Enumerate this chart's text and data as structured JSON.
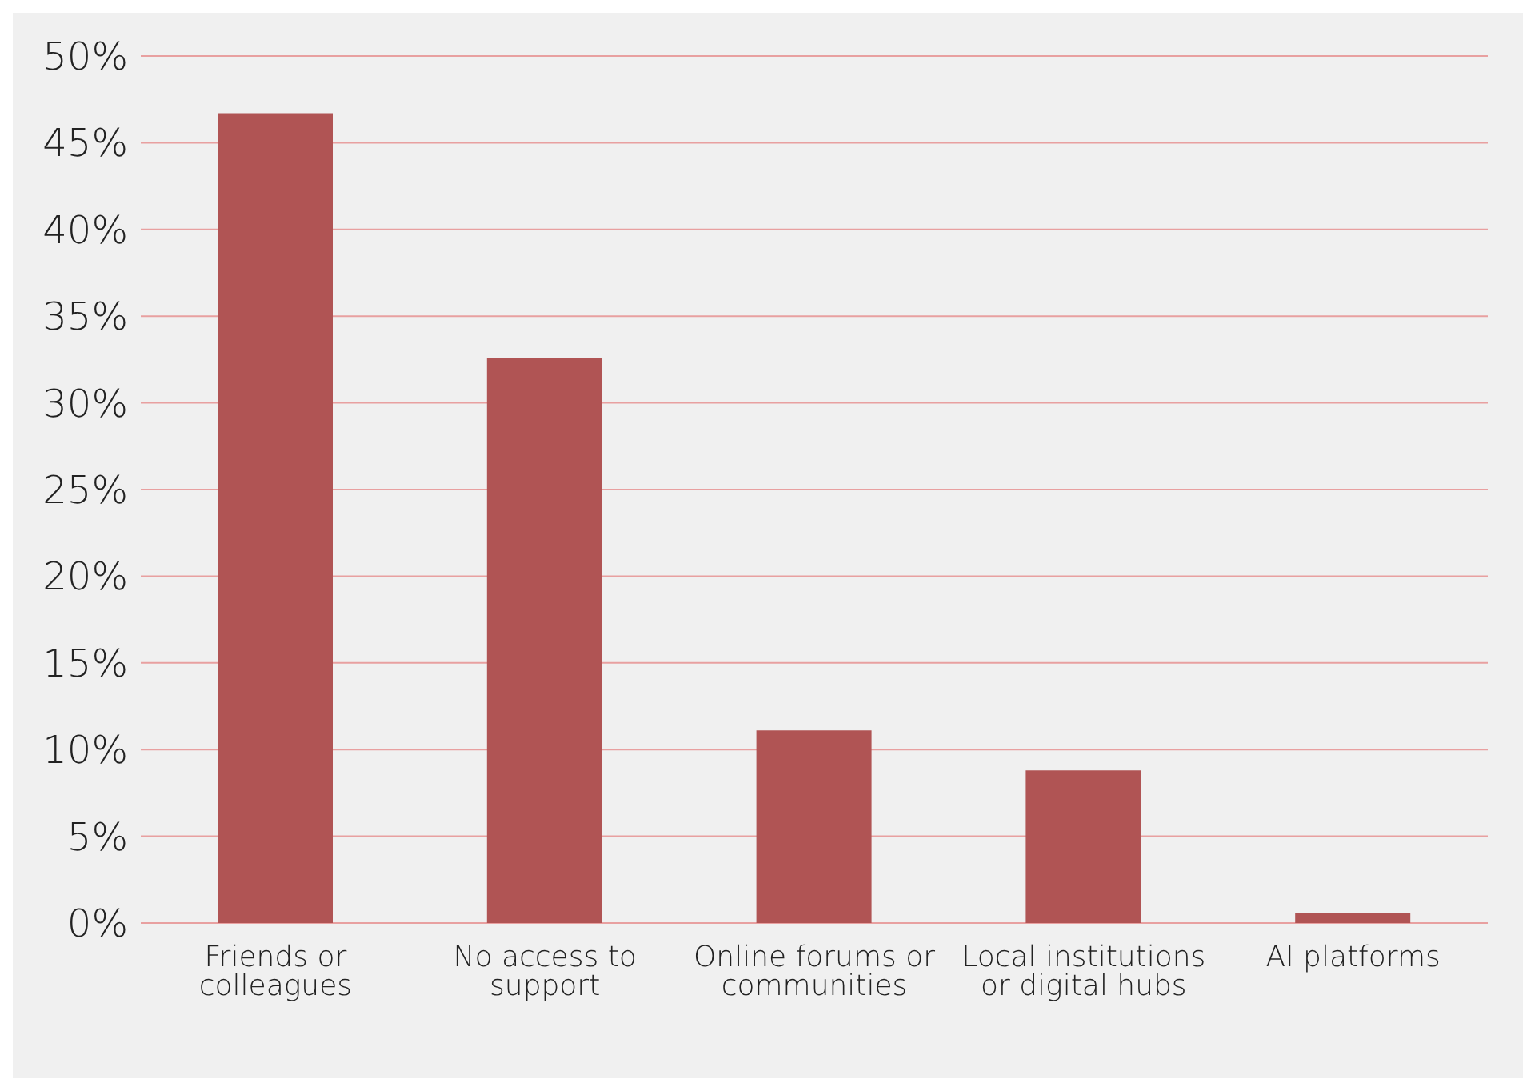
{
  "chart_data": {
    "type": "bar",
    "categories": [
      "Friends or colleagues",
      "No access to support",
      "Online forums or communities",
      "Local institutions or digital hubs",
      "AI platforms"
    ],
    "values": [
      46.7,
      32.6,
      11.1,
      8.8,
      0.6
    ],
    "color": "#b05454",
    "ylim": [
      0,
      50
    ],
    "yticks": [
      {
        "value": 0,
        "label": "0%"
      },
      {
        "value": 5,
        "label": "5%"
      },
      {
        "value": 10,
        "label": "10%"
      },
      {
        "value": 15,
        "label": "15%"
      },
      {
        "value": 20,
        "label": "20%"
      },
      {
        "value": 25,
        "label": "25%"
      },
      {
        "value": 30,
        "label": "30%"
      },
      {
        "value": 35,
        "label": "35%"
      },
      {
        "value": 40,
        "label": "40%"
      },
      {
        "value": 45,
        "label": "45%"
      },
      {
        "value": 50,
        "label": "50%"
      }
    ],
    "grid": "y"
  }
}
